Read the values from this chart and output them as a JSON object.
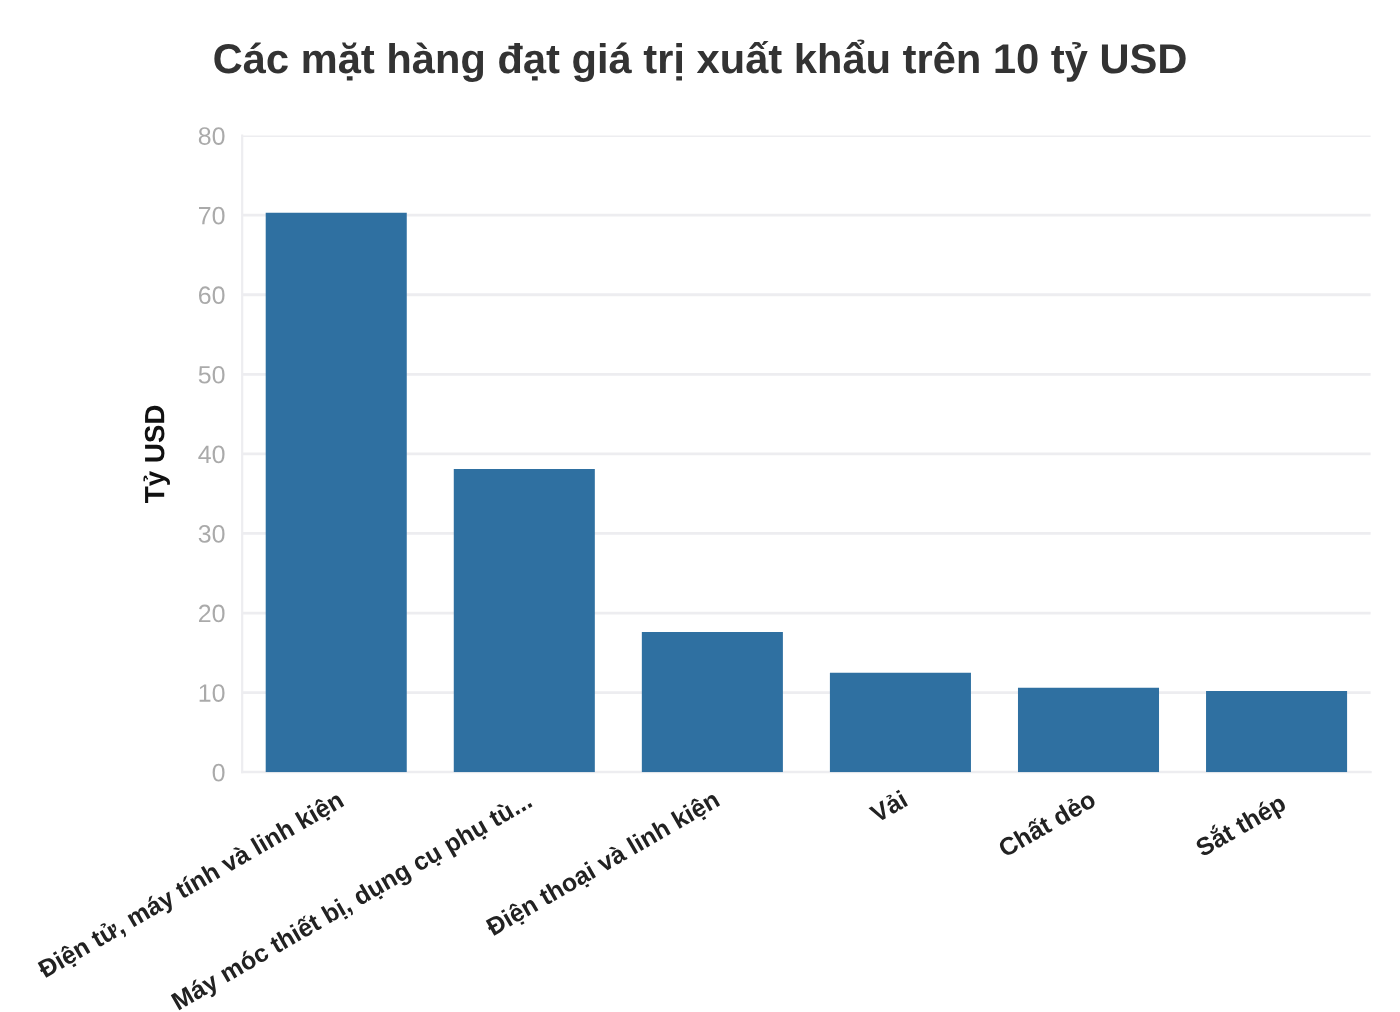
{
  "chart_data": {
    "type": "bar",
    "title": "Các mặt hàng đạt giá trị xuất khẩu trên 10 tỷ USD",
    "ylabel": "Tỷ USD",
    "categories": [
      "Điện tử, máy tính và linh kiện",
      "Máy móc thiết bị, dụng cụ phụ tù...",
      "Điện thoại và linh kiện",
      "Vải",
      "Chất dẻo",
      "Sắt thép"
    ],
    "values": [
      70.3,
      38.1,
      17.6,
      12.5,
      10.6,
      10.2
    ],
    "color": "#2f70a1",
    "ylim": [
      0,
      80
    ],
    "yticks": [
      0,
      10,
      20,
      30,
      40,
      50,
      60,
      70,
      80
    ],
    "grid": "y"
  }
}
